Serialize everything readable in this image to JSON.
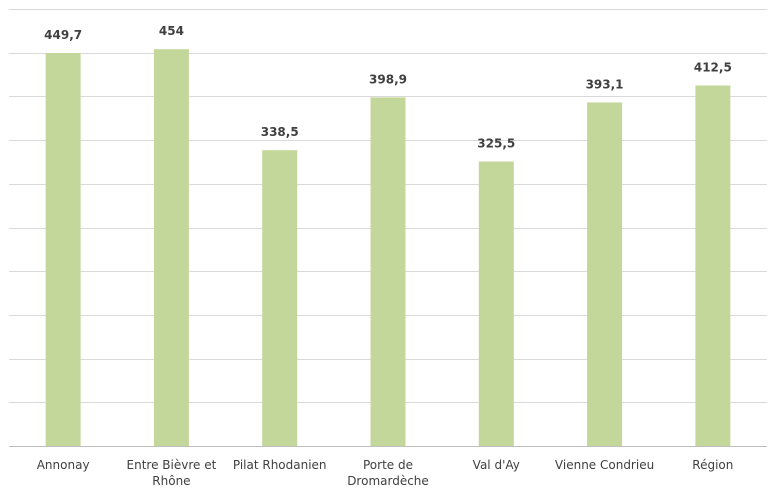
{
  "chart_data": {
    "type": "bar",
    "categories": [
      "Annonay",
      "Entre Bièvre et Rhône",
      "Pilat Rhodanien",
      "Porte de Dromardèche",
      "Val d'Ay",
      "Vienne Condrieu",
      "Région"
    ],
    "values": [
      449.7,
      454,
      338.5,
      398.9,
      325.5,
      393.1,
      412.5
    ],
    "value_labels": [
      "449,7",
      "454",
      "338,5",
      "398,9",
      "325,5",
      "393,1",
      "412,5"
    ],
    "color": "#c4d79b",
    "ylim": [
      0,
      500
    ],
    "yticks": [
      0,
      50,
      100,
      150,
      200,
      250,
      300,
      350,
      400,
      450,
      500
    ],
    "grid": true
  }
}
